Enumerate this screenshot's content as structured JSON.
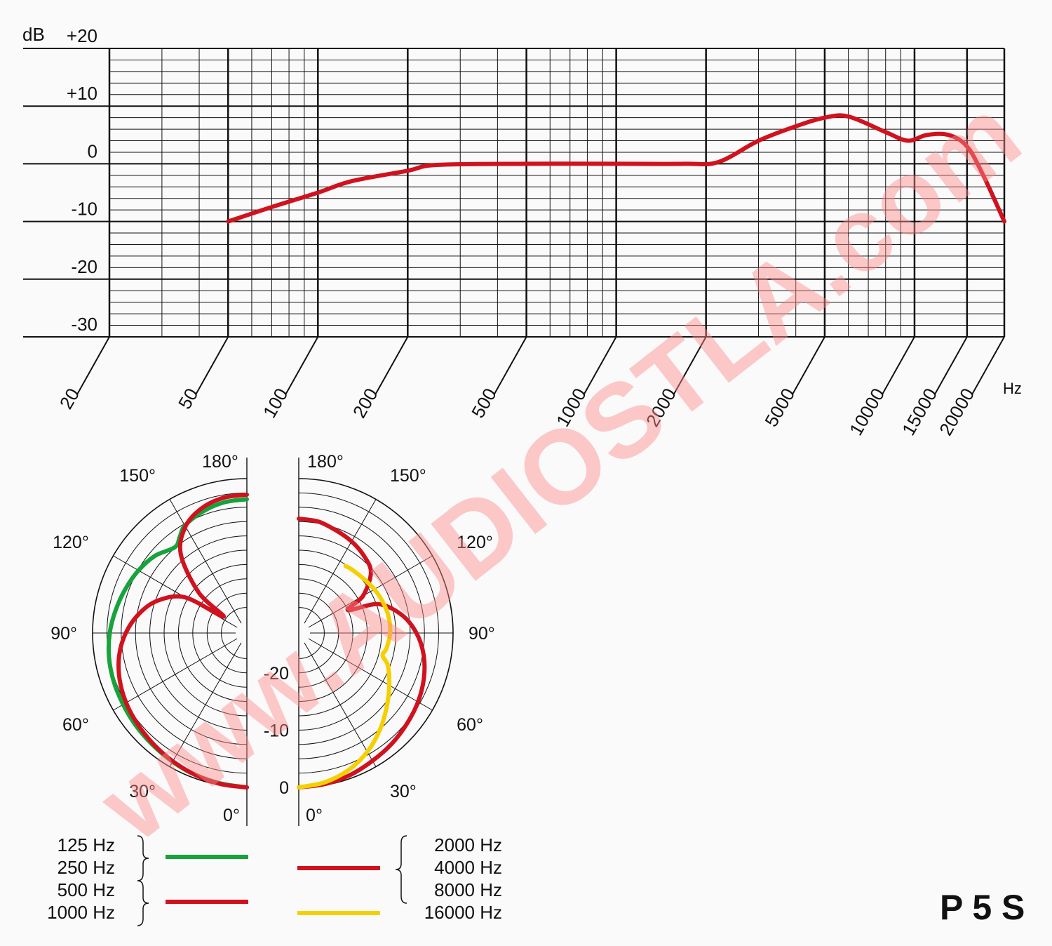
{
  "model": "P 5 S",
  "watermark": "www.AUDIOSTLA.com",
  "colors": {
    "grid": "#111111",
    "curve": "#d0121f",
    "green": "#17a33b",
    "red": "#d0121f",
    "yellow": "#f5d000",
    "watermark": "#ff8a8a"
  },
  "chart_data": [
    {
      "type": "line",
      "ylabel": "dB",
      "xlabel": "Hz",
      "x_scale": "log",
      "xlim": [
        20,
        20000
      ],
      "ylim": [
        -30,
        20
      ],
      "y_ticks": [
        "+20",
        "+10",
        "0",
        "-10",
        "-20",
        "-30"
      ],
      "y_tick_values": [
        20,
        10,
        0,
        -10,
        -20,
        -30
      ],
      "x_ticks": [
        "20",
        "50",
        "100",
        "200",
        "500",
        "1000",
        "2000",
        "5000",
        "10000",
        "15000",
        "20000"
      ],
      "x_tick_values": [
        20,
        50,
        100,
        200,
        500,
        1000,
        2000,
        5000,
        10000,
        15000,
        20000
      ],
      "grid": true,
      "series": [
        {
          "color": "#d0121f",
          "x": [
            50,
            70,
            100,
            130,
            200,
            250,
            500,
            1000,
            1700,
            2200,
            3000,
            4000,
            5000,
            6000,
            8000,
            9500,
            11000,
            13000,
            15000,
            17000,
            20000
          ],
          "y": [
            -10,
            -7.5,
            -5,
            -3,
            -1.2,
            -0.2,
            0,
            0,
            0,
            0.3,
            4,
            6.5,
            8,
            8.2,
            5.5,
            4,
            5,
            5,
            3,
            -2,
            -10
          ]
        }
      ]
    },
    {
      "type": "polar",
      "r_labels": [
        "0",
        "-10",
        "-20"
      ],
      "r_label_values": [
        0,
        -10,
        -20
      ],
      "angle_labels_left": [
        "180°",
        "150°",
        "120°",
        "90°",
        "60°",
        "30°",
        "0°"
      ],
      "angle_labels_right": [
        "180°",
        "150°",
        "120°",
        "90°",
        "60°",
        "30°",
        "0°"
      ],
      "left_half": [
        {
          "name": "125 Hz / 250 Hz",
          "color": "#17a33b",
          "points": [
            [
              0,
              0
            ],
            [
              10,
              -0.3
            ],
            [
              20,
              -0.6
            ],
            [
              30,
              -1
            ],
            [
              40,
              -1.4
            ],
            [
              50,
              -1.7
            ],
            [
              60,
              -2
            ],
            [
              70,
              -2.2
            ],
            [
              80,
              -2.5
            ],
            [
              90,
              -3
            ],
            [
              100,
              -3.7
            ],
            [
              110,
              -4.4
            ],
            [
              120,
              -5.1
            ],
            [
              130,
              -6
            ],
            [
              140,
              -7.4
            ],
            [
              145,
              -6.5
            ],
            [
              150,
              -5.3
            ],
            [
              160,
              -4.4
            ],
            [
              170,
              -3.8
            ],
            [
              180,
              -3.6
            ]
          ]
        },
        {
          "name": "500 Hz / 1000 Hz",
          "color": "#d0121f",
          "points": [
            [
              0,
              0
            ],
            [
              10,
              -0.2
            ],
            [
              20,
              -0.6
            ],
            [
              30,
              -1.1
            ],
            [
              40,
              -1.6
            ],
            [
              50,
              -2.1
            ],
            [
              60,
              -2.6
            ],
            [
              70,
              -3.3
            ],
            [
              80,
              -4.3
            ],
            [
              90,
              -5.8
            ],
            [
              100,
              -7.8
            ],
            [
              110,
              -10.4
            ],
            [
              120,
              -14.5
            ],
            [
              125,
              -22
            ],
            [
              130,
              -16
            ],
            [
              140,
              -9
            ],
            [
              150,
              -5.5
            ],
            [
              160,
              -3.8
            ],
            [
              170,
              -3
            ],
            [
              180,
              -2.8
            ]
          ]
        }
      ],
      "right_half": [
        {
          "name": "2000 Hz / 4000 Hz / 8000 Hz",
          "color": "#d0121f",
          "points": [
            [
              0,
              0
            ],
            [
              10,
              -0.2
            ],
            [
              20,
              -0.6
            ],
            [
              30,
              -1.2
            ],
            [
              40,
              -1.7
            ],
            [
              50,
              -2.3
            ],
            [
              60,
              -2.9
            ],
            [
              70,
              -3.7
            ],
            [
              80,
              -4.8
            ],
            [
              90,
              -6.4
            ],
            [
              100,
              -8.7
            ],
            [
              110,
              -12.2
            ],
            [
              115,
              -17.5
            ],
            [
              120,
              -14
            ],
            [
              130,
              -10.5
            ],
            [
              140,
              -9.3
            ],
            [
              150,
              -8.5
            ],
            [
              160,
              -7.9
            ],
            [
              170,
              -7.2
            ],
            [
              180,
              -7
            ]
          ]
        },
        {
          "name": "16000 Hz",
          "color": "#f5d000",
          "points": [
            [
              0,
              0
            ],
            [
              10,
              -0.5
            ],
            [
              20,
              -1.5
            ],
            [
              30,
              -3
            ],
            [
              40,
              -4.9
            ],
            [
              50,
              -6.9
            ],
            [
              60,
              -8.7
            ],
            [
              70,
              -10.4
            ],
            [
              75,
              -11.8
            ],
            [
              80,
              -11.4
            ],
            [
              90,
              -11
            ],
            [
              100,
              -11
            ],
            [
              110,
              -11.3
            ],
            [
              120,
              -11.7
            ],
            [
              130,
              -12.2
            ],
            [
              140,
              -12.5
            ],
            [
              145,
              -12.7
            ]
          ]
        }
      ],
      "legend_left": [
        {
          "labels": [
            "125 Hz",
            "250 Hz"
          ],
          "color": "#17a33b"
        },
        {
          "labels": [
            "500 Hz",
            "1000 Hz"
          ],
          "color": "#d0121f"
        }
      ],
      "legend_right": [
        {
          "labels": [
            "2000 Hz",
            "4000 Hz",
            "8000 Hz"
          ],
          "color": "#d0121f"
        },
        {
          "labels": [
            "16000 Hz"
          ],
          "color": "#f5d000"
        }
      ]
    }
  ]
}
